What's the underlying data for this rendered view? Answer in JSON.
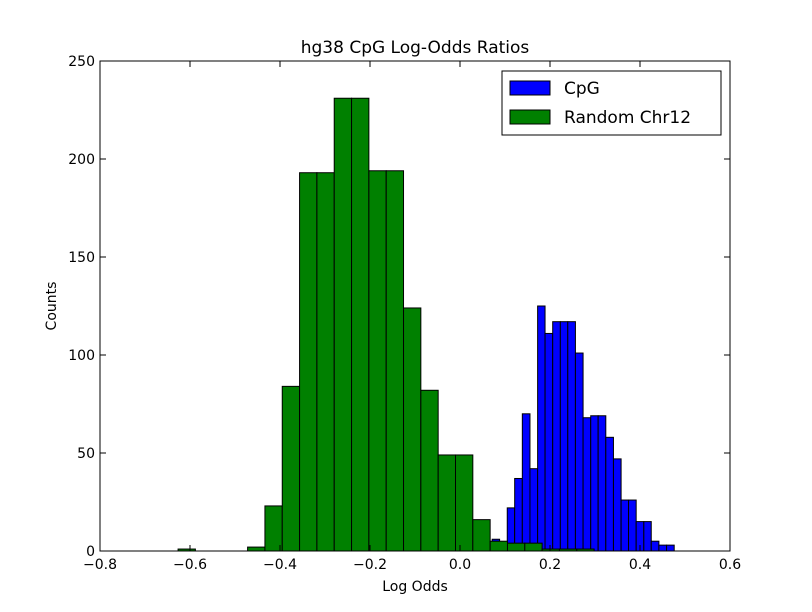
{
  "chart_data": {
    "type": "bar",
    "title": "hg38 CpG Log-Odds Ratios",
    "xlabel": "Log Odds",
    "ylabel": "Counts",
    "xlim": [
      -0.8,
      0.6
    ],
    "ylim": [
      0,
      250
    ],
    "xticks": [
      -0.8,
      -0.6,
      -0.4,
      -0.2,
      0.0,
      0.2,
      0.4,
      0.6
    ],
    "xtick_labels": [
      "−0.8",
      "−0.6",
      "−0.4",
      "−0.2",
      "0.0",
      "0.2",
      "0.4",
      "0.6"
    ],
    "yticks": [
      0,
      50,
      100,
      150,
      200,
      250
    ],
    "ytick_labels": [
      "0",
      "50",
      "100",
      "150",
      "200",
      "250"
    ],
    "grid": false,
    "legend_position": "top-right",
    "series": [
      {
        "name": "CpG",
        "color": "#0000ff",
        "bins": [
          {
            "x0": 0.0715,
            "x1": 0.088,
            "count": 6
          },
          {
            "x0": 0.088,
            "x1": 0.105,
            "count": 2
          },
          {
            "x0": 0.105,
            "x1": 0.1215,
            "count": 22
          },
          {
            "x0": 0.1215,
            "x1": 0.1385,
            "count": 37
          },
          {
            "x0": 0.1385,
            "x1": 0.1555,
            "count": 70
          },
          {
            "x0": 0.1555,
            "x1": 0.1725,
            "count": 42
          },
          {
            "x0": 0.1725,
            "x1": 0.189,
            "count": 125
          },
          {
            "x0": 0.189,
            "x1": 0.206,
            "count": 111
          },
          {
            "x0": 0.206,
            "x1": 0.223,
            "count": 117
          },
          {
            "x0": 0.223,
            "x1": 0.2395,
            "count": 117
          },
          {
            "x0": 0.2395,
            "x1": 0.2565,
            "count": 117
          },
          {
            "x0": 0.2565,
            "x1": 0.2735,
            "count": 101
          },
          {
            "x0": 0.2735,
            "x1": 0.2905,
            "count": 68
          },
          {
            "x0": 0.2905,
            "x1": 0.307,
            "count": 69
          },
          {
            "x0": 0.307,
            "x1": 0.324,
            "count": 69
          },
          {
            "x0": 0.324,
            "x1": 0.341,
            "count": 58
          },
          {
            "x0": 0.341,
            "x1": 0.358,
            "count": 47
          },
          {
            "x0": 0.358,
            "x1": 0.3745,
            "count": 26
          },
          {
            "x0": 0.3745,
            "x1": 0.3915,
            "count": 26
          },
          {
            "x0": 0.3915,
            "x1": 0.4085,
            "count": 15
          },
          {
            "x0": 0.4085,
            "x1": 0.425,
            "count": 15
          },
          {
            "x0": 0.425,
            "x1": 0.442,
            "count": 5
          },
          {
            "x0": 0.442,
            "x1": 0.459,
            "count": 3
          },
          {
            "x0": 0.459,
            "x1": 0.476,
            "count": 3
          }
        ]
      },
      {
        "name": "Random Chr12",
        "color": "#008000",
        "bins": [
          {
            "x0": -0.6265,
            "x1": -0.588,
            "count": 1
          },
          {
            "x0": -0.472,
            "x1": -0.4335,
            "count": 2
          },
          {
            "x0": -0.4335,
            "x1": -0.395,
            "count": 23
          },
          {
            "x0": -0.395,
            "x1": -0.3565,
            "count": 84
          },
          {
            "x0": -0.3565,
            "x1": -0.318,
            "count": 193
          },
          {
            "x0": -0.318,
            "x1": -0.2795,
            "count": 193
          },
          {
            "x0": -0.2795,
            "x1": -0.241,
            "count": 231
          },
          {
            "x0": -0.241,
            "x1": -0.2025,
            "count": 231
          },
          {
            "x0": -0.2025,
            "x1": -0.164,
            "count": 194
          },
          {
            "x0": -0.164,
            "x1": -0.1255,
            "count": 194
          },
          {
            "x0": -0.1255,
            "x1": -0.087,
            "count": 124
          },
          {
            "x0": -0.087,
            "x1": -0.0485,
            "count": 82
          },
          {
            "x0": -0.0485,
            "x1": -0.01,
            "count": 49
          },
          {
            "x0": -0.01,
            "x1": 0.0285,
            "count": 49
          },
          {
            "x0": 0.0285,
            "x1": 0.067,
            "count": 16
          },
          {
            "x0": 0.067,
            "x1": 0.1055,
            "count": 5
          },
          {
            "x0": 0.1055,
            "x1": 0.144,
            "count": 4
          },
          {
            "x0": 0.144,
            "x1": 0.1825,
            "count": 4
          },
          {
            "x0": 0.1825,
            "x1": 0.221,
            "count": 1
          },
          {
            "x0": 0.221,
            "x1": 0.2595,
            "count": 1
          },
          {
            "x0": 0.2595,
            "x1": 0.298,
            "count": 1
          }
        ]
      }
    ]
  }
}
